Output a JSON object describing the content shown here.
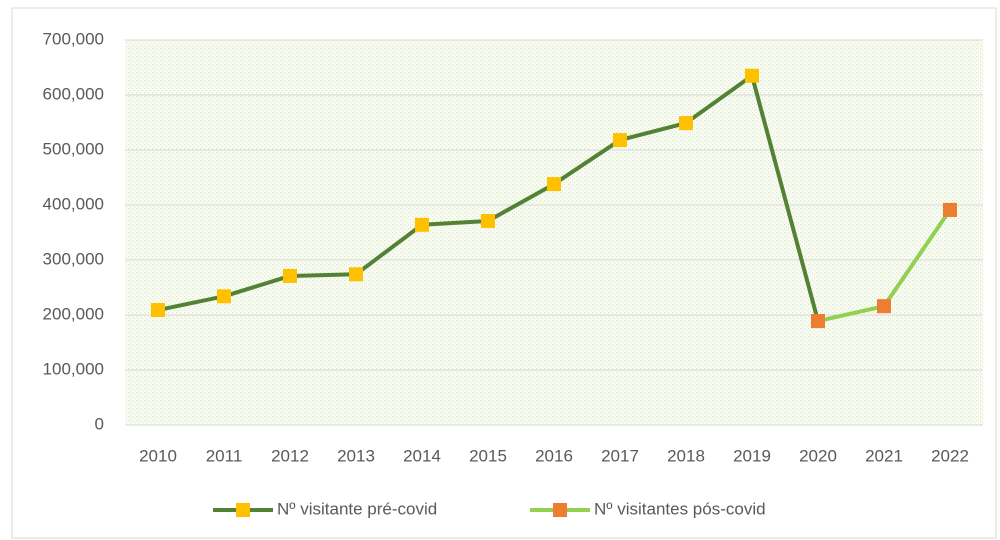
{
  "chart_data": {
    "type": "line",
    "categories": [
      "2010",
      "2011",
      "2012",
      "2013",
      "2014",
      "2015",
      "2016",
      "2017",
      "2018",
      "2019",
      "2020",
      "2021",
      "2022"
    ],
    "series": [
      {
        "name": "Nº visitante pré-covid",
        "color": "#548235",
        "marker_color": "#ffc000",
        "values": [
          209000,
          234000,
          271000,
          274000,
          364000,
          371000,
          438000,
          518000,
          549000,
          635000,
          189000,
          null,
          null
        ]
      },
      {
        "name": "Nº visitantes pós-covid",
        "color": "#92d050",
        "marker_color": "#ed7d31",
        "values": [
          null,
          null,
          null,
          null,
          null,
          null,
          null,
          null,
          null,
          null,
          189000,
          216000,
          391000
        ]
      }
    ],
    "ylim": [
      0,
      700000
    ],
    "yticks": [
      0,
      {
        "value": 100000,
        "label": "100,000"
      },
      {
        "value": 200000,
        "label": "200,000"
      },
      {
        "value": 300000,
        "label": "300,000"
      },
      {
        "value": 400000,
        "label": "400,000"
      },
      {
        "value": 500000,
        "label": "500,000"
      },
      {
        "value": 600000,
        "label": "600,000"
      },
      {
        "value": 700000,
        "label": "700,000"
      }
    ],
    "grid": true,
    "legend": "bottom"
  }
}
